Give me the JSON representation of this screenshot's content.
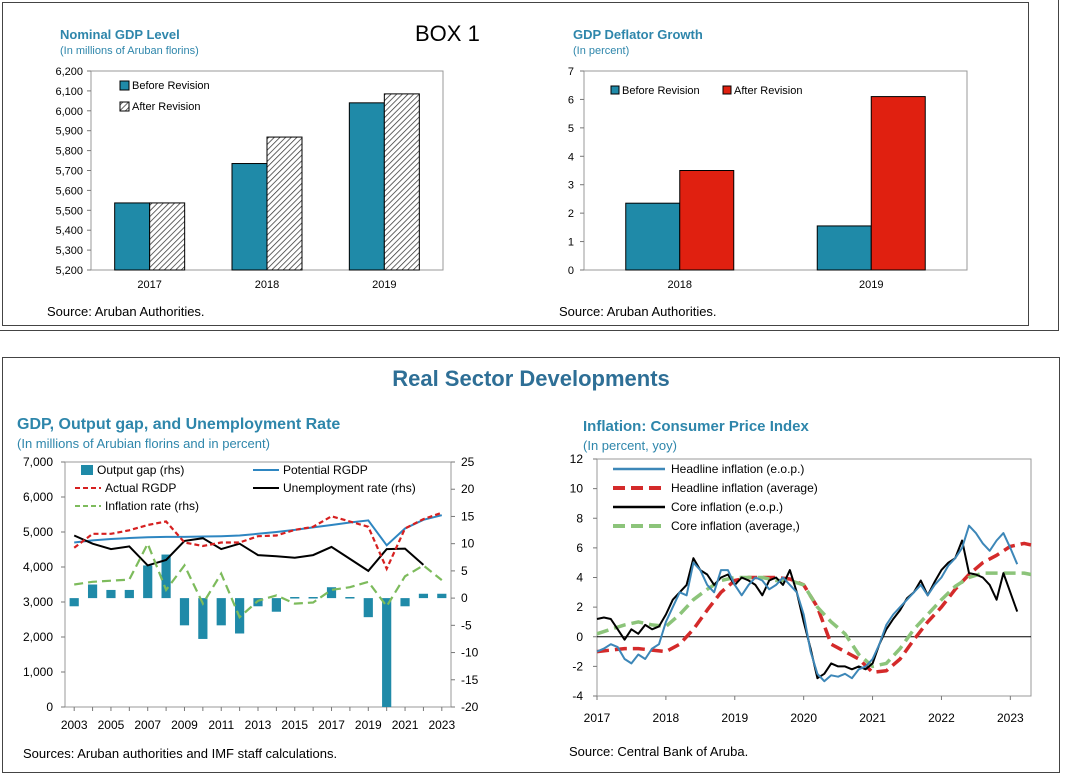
{
  "box_label": "BOX 1",
  "section_title": "Real Sector Developments",
  "chart_data": [
    {
      "id": "nominal-gdp",
      "type": "bar",
      "title": "Nominal GDP Level",
      "subtitle": "(In millions of Aruban florins)",
      "source": "Source: Aruban Authorities.",
      "categories": [
        "2017",
        "2018",
        "2019"
      ],
      "series": [
        {
          "name": "Before Revision",
          "values": [
            5537,
            5735,
            6040
          ],
          "color": "#1f8aa8"
        },
        {
          "name": "After Revision",
          "values": [
            5537,
            5868,
            6085
          ],
          "pattern": "hatch"
        }
      ],
      "ylim": [
        5200,
        6200
      ],
      "yticks": [
        "5,200",
        "5,300",
        "5,400",
        "5,500",
        "5,600",
        "5,700",
        "5,800",
        "5,900",
        "6,000",
        "6,100",
        "6,200"
      ],
      "legend": "top-left"
    },
    {
      "id": "gdp-deflator",
      "type": "bar",
      "title": "GDP Deflator Growth",
      "subtitle": "(In percent)",
      "source": "Source: Aruban Authorities.",
      "categories": [
        "2018",
        "2019"
      ],
      "series": [
        {
          "name": "Before Revision",
          "values": [
            2.35,
            1.55
          ],
          "color": "#1f8aa8"
        },
        {
          "name": "After Revision",
          "values": [
            3.5,
            6.1
          ],
          "color": "#e02010"
        }
      ],
      "ylim": [
        0,
        7
      ],
      "yticks": [
        "0",
        "1",
        "2",
        "3",
        "4",
        "5",
        "6",
        "7"
      ],
      "legend": "top"
    },
    {
      "id": "gdp-gap-unemp",
      "type": "bar+line",
      "title": "GDP, Output gap, and Unemployment Rate",
      "subtitle": "(In millions of Arubian florins and in percent)",
      "source": "Sources: Aruban authorities and IMF staff calculations.",
      "x": [
        "2003",
        "2004",
        "2005",
        "2006",
        "2007",
        "2008",
        "2009",
        "2010",
        "2011",
        "2012",
        "2013",
        "2014",
        "2015",
        "2016",
        "2017",
        "2018",
        "2019",
        "2020",
        "2021",
        "2022",
        "2023"
      ],
      "xticks": [
        "2003",
        "2005",
        "2007",
        "2009",
        "2011",
        "2013",
        "2015",
        "2017",
        "2019",
        "2021",
        "2023"
      ],
      "ylim_left": [
        0,
        7000
      ],
      "yticks_left": [
        "0",
        "1,000",
        "2,000",
        "3,000",
        "4,000",
        "5,000",
        "6,000",
        "7,000"
      ],
      "ylim_right": [
        -20,
        25
      ],
      "yticks_right": [
        "-20",
        "-15",
        "-10",
        "-5",
        "0",
        "5",
        "10",
        "15",
        "20",
        "25"
      ],
      "series": [
        {
          "name": "Output gap (rhs)",
          "kind": "bar",
          "axis": "right",
          "color": "#1f8aa8",
          "values": [
            -1.5,
            2.5,
            1.5,
            1.5,
            6.0,
            8.0,
            -5.0,
            -7.5,
            -5.0,
            -6.5,
            -1.5,
            -2.5,
            0.2,
            0.2,
            2.0,
            0.2,
            -3.5,
            -20.0,
            -1.5,
            0.8,
            0.8
          ]
        },
        {
          "name": "Potential RGDP",
          "kind": "line",
          "axis": "left",
          "color": "#2e86c1",
          "values": [
            4700,
            4760,
            4800,
            4830,
            4850,
            4860,
            4860,
            4870,
            4880,
            4900,
            4950,
            5000,
            5060,
            5130,
            5200,
            5270,
            5330,
            4620,
            5100,
            5350,
            5480
          ]
        },
        {
          "name": "Unemployment rate (rhs)",
          "kind": "line",
          "axis": "right",
          "color": "#000000",
          "values": [
            11.5,
            10.0,
            9.0,
            9.5,
            6.0,
            7.0,
            10.5,
            11.0,
            9.0,
            10.0,
            7.9,
            7.7,
            7.4,
            7.9,
            9.4,
            7.2,
            5.0,
            9.0,
            9.1,
            6.1,
            null
          ]
        },
        {
          "name": "Actual RGDP",
          "kind": "line",
          "axis": "left",
          "style": "dashed",
          "color": "#d62020",
          "values": [
            4550,
            4950,
            4950,
            5050,
            5200,
            5300,
            4700,
            4600,
            4700,
            4700,
            4880,
            4900,
            5060,
            5150,
            5450,
            5300,
            5150,
            3950,
            5100,
            5370,
            5550
          ]
        },
        {
          "name": "Inflation rate (rhs)",
          "kind": "line",
          "axis": "right",
          "style": "dashed",
          "color": "#7dbb5c",
          "values": [
            2.5,
            3.0,
            3.2,
            3.4,
            10.0,
            1.5,
            6.0,
            -1.0,
            4.5,
            -3.5,
            -0.5,
            0.5,
            -1.0,
            -0.8,
            1.5,
            2.0,
            3.0,
            -1.5,
            4.0,
            6.0,
            3.3
          ]
        }
      ],
      "legend": "top"
    },
    {
      "id": "cpi-inflation",
      "type": "line",
      "title": "Inflation: Consumer Price Index",
      "subtitle": "(In percent, yoy)",
      "source": "Source: Central Bank of Aruba.",
      "xticks": [
        "2017",
        "2018",
        "2019",
        "2020",
        "2021",
        "2022",
        "2023"
      ],
      "xlim": [
        2017.0,
        2023.3
      ],
      "ylim": [
        -4,
        12
      ],
      "yticks": [
        "-4",
        "-2",
        "0",
        "2",
        "4",
        "6",
        "8",
        "10",
        "12"
      ],
      "series": [
        {
          "name": "Headline inflation (e.o.p.)",
          "style": "solid",
          "color": "#3d87b8",
          "x": [
            2017.0,
            2017.1,
            2017.2,
            2017.3,
            2017.4,
            2017.5,
            2017.6,
            2017.7,
            2017.8,
            2017.9,
            2018.0,
            2018.1,
            2018.2,
            2018.3,
            2018.4,
            2018.5,
            2018.6,
            2018.7,
            2018.8,
            2018.9,
            2019.0,
            2019.1,
            2019.2,
            2019.3,
            2019.4,
            2019.5,
            2019.6,
            2019.7,
            2019.8,
            2019.9,
            2020.0,
            2020.1,
            2020.2,
            2020.3,
            2020.4,
            2020.5,
            2020.6,
            2020.7,
            2020.8,
            2020.9,
            2021.0,
            2021.1,
            2021.2,
            2021.3,
            2021.4,
            2021.5,
            2021.6,
            2021.7,
            2021.8,
            2021.9,
            2022.0,
            2022.1,
            2022.2,
            2022.3,
            2022.4,
            2022.5,
            2022.6,
            2022.7,
            2022.8,
            2022.9,
            2023.0,
            2023.1,
            2023.2,
            2023.3
          ],
          "values": [
            -1.0,
            -0.8,
            -0.5,
            -0.7,
            -1.5,
            -1.8,
            -1.2,
            -1.5,
            -0.8,
            -0.5,
            1.0,
            2.0,
            3.0,
            2.8,
            5.0,
            4.5,
            3.5,
            3.0,
            4.5,
            4.5,
            3.5,
            2.8,
            3.5,
            4.0,
            3.8,
            3.2,
            3.5,
            4.0,
            3.5,
            3.0,
            1.5,
            -1.0,
            -2.5,
            -3.0,
            -2.6,
            -2.7,
            -2.5,
            -2.8,
            -2.2,
            -2.0,
            -1.5,
            -0.5,
            0.8,
            1.5,
            2.0,
            2.5,
            3.0,
            3.5,
            2.8,
            3.5,
            4.0,
            4.8,
            5.3,
            6.0,
            7.5,
            7.0,
            6.3,
            5.8,
            6.5,
            7.0,
            6.0,
            4.9,
            null,
            null
          ]
        },
        {
          "name": "Headline inflation (average)",
          "style": "dashed-thick",
          "color": "#d42a2a",
          "x": [
            2017.0,
            2017.2,
            2017.4,
            2017.6,
            2017.8,
            2018.0,
            2018.2,
            2018.4,
            2018.6,
            2018.8,
            2019.0,
            2019.2,
            2019.4,
            2019.6,
            2019.8,
            2020.0,
            2020.2,
            2020.4,
            2020.6,
            2020.8,
            2021.0,
            2021.2,
            2021.4,
            2021.6,
            2021.8,
            2022.0,
            2022.2,
            2022.4,
            2022.6,
            2022.8,
            2023.0,
            2023.2,
            2023.3
          ],
          "values": [
            -1.0,
            -0.9,
            -0.8,
            -0.8,
            -0.9,
            -1.0,
            -0.5,
            0.5,
            1.8,
            3.0,
            3.8,
            4.0,
            4.0,
            4.0,
            3.9,
            3.5,
            2.0,
            -0.5,
            -1.0,
            -1.5,
            -2.4,
            -2.3,
            -1.5,
            -0.2,
            1.0,
            2.0,
            3.2,
            4.2,
            5.0,
            5.5,
            6.1,
            6.3,
            6.2
          ]
        },
        {
          "name": "Core inflation (e.o.p.)",
          "style": "solid",
          "color": "#000000",
          "x": [
            2017.0,
            2017.1,
            2017.2,
            2017.3,
            2017.4,
            2017.5,
            2017.6,
            2017.7,
            2017.8,
            2017.9,
            2018.0,
            2018.1,
            2018.2,
            2018.3,
            2018.4,
            2018.5,
            2018.6,
            2018.7,
            2018.8,
            2018.9,
            2019.0,
            2019.1,
            2019.2,
            2019.3,
            2019.4,
            2019.5,
            2019.6,
            2019.7,
            2019.8,
            2019.9,
            2020.0,
            2020.1,
            2020.2,
            2020.3,
            2020.4,
            2020.5,
            2020.6,
            2020.7,
            2020.8,
            2020.9,
            2021.0,
            2021.1,
            2021.2,
            2021.3,
            2021.4,
            2021.5,
            2021.6,
            2021.7,
            2021.8,
            2021.9,
            2022.0,
            2022.1,
            2022.2,
            2022.3,
            2022.4,
            2022.5,
            2022.6,
            2022.7,
            2022.8,
            2022.9,
            2023.0,
            2023.1,
            2023.2,
            2023.3
          ],
          "values": [
            1.2,
            1.3,
            1.2,
            0.5,
            -0.2,
            0.5,
            0.2,
            0.8,
            0.5,
            0.7,
            1.5,
            2.5,
            3.0,
            3.5,
            5.3,
            4.5,
            4.2,
            3.5,
            4.0,
            4.2,
            3.5,
            4.0,
            3.8,
            3.5,
            2.8,
            3.8,
            4.0,
            3.5,
            4.5,
            3.0,
            1.0,
            -0.8,
            -2.8,
            -2.5,
            -1.8,
            -2.0,
            -2.0,
            -2.2,
            -2.0,
            -2.2,
            -1.8,
            -0.5,
            0.5,
            1.2,
            1.8,
            2.6,
            3.0,
            3.8,
            2.8,
            3.7,
            4.5,
            5.0,
            5.3,
            6.5,
            4.3,
            4.2,
            4.0,
            3.5,
            2.5,
            4.3,
            3.0,
            1.7,
            null,
            null
          ]
        },
        {
          "name": "Core inflation (average,)",
          "style": "dashed-thick",
          "color": "#8cc47a",
          "x": [
            2017.0,
            2017.2,
            2017.4,
            2017.6,
            2017.8,
            2018.0,
            2018.2,
            2018.4,
            2018.6,
            2018.8,
            2019.0,
            2019.2,
            2019.4,
            2019.6,
            2019.8,
            2020.0,
            2020.2,
            2020.4,
            2020.6,
            2020.8,
            2021.0,
            2021.2,
            2021.4,
            2021.6,
            2021.8,
            2022.0,
            2022.2,
            2022.4,
            2022.6,
            2022.8,
            2023.0,
            2023.2,
            2023.3
          ],
          "values": [
            0.2,
            0.5,
            0.8,
            1.0,
            0.8,
            0.7,
            1.5,
            2.5,
            3.2,
            3.8,
            4.0,
            4.0,
            4.0,
            3.8,
            3.8,
            3.5,
            2.0,
            1.0,
            0.2,
            -1.2,
            -2.0,
            -1.8,
            -0.8,
            0.5,
            1.5,
            2.5,
            3.4,
            4.0,
            4.3,
            4.3,
            4.3,
            4.3,
            4.2
          ]
        }
      ],
      "legend": "top-right"
    }
  ]
}
